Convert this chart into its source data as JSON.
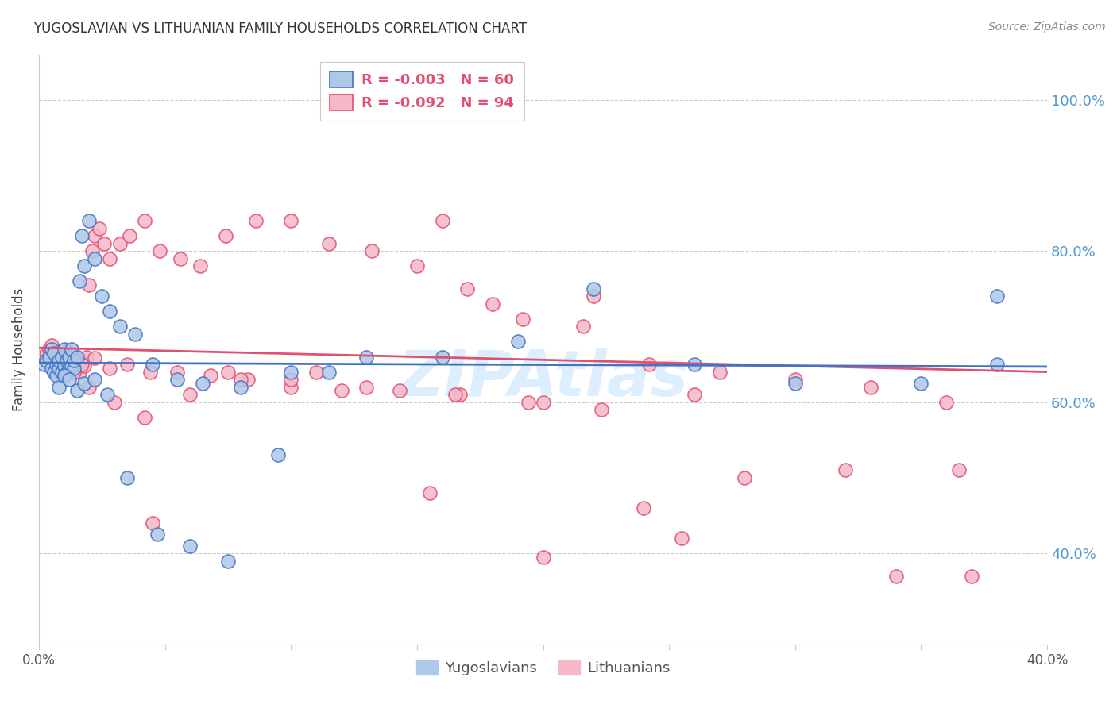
{
  "title": "YUGOSLAVIAN VS LITHUANIAN FAMILY HOUSEHOLDS CORRELATION CHART",
  "source": "Source: ZipAtlas.com",
  "ylabel": "Family Households",
  "legend_blue_r": "-0.003",
  "legend_blue_n": "60",
  "legend_pink_r": "-0.092",
  "legend_pink_n": "94",
  "xlim": [
    0.0,
    0.4
  ],
  "ylim": [
    0.28,
    1.06
  ],
  "yticks": [
    0.4,
    0.6,
    0.8,
    1.0
  ],
  "ytick_labels": [
    "40.0%",
    "60.0%",
    "80.0%",
    "100.0%"
  ],
  "xticks": [
    0.0,
    0.05,
    0.1,
    0.15,
    0.2,
    0.25,
    0.3,
    0.35,
    0.4
  ],
  "xtick_labels": [
    "0.0%",
    "",
    "",
    "",
    "",
    "",
    "",
    "",
    "40.0%"
  ],
  "blue_color": "#adc8e8",
  "pink_color": "#f4b8c8",
  "trendline_blue": "#4472c4",
  "trendline_pink": "#e05070",
  "background_color": "#ffffff",
  "grid_color": "#cccccc",
  "title_color": "#333333",
  "right_tick_color": "#5599cc",
  "watermark_color": "#ddeeff",
  "blue_x": [
    0.002,
    0.003,
    0.004,
    0.005,
    0.005,
    0.006,
    0.006,
    0.007,
    0.007,
    0.008,
    0.008,
    0.009,
    0.009,
    0.01,
    0.01,
    0.011,
    0.011,
    0.012,
    0.012,
    0.013,
    0.013,
    0.014,
    0.014,
    0.015,
    0.016,
    0.017,
    0.018,
    0.02,
    0.022,
    0.025,
    0.028,
    0.032,
    0.038,
    0.045,
    0.055,
    0.065,
    0.08,
    0.1,
    0.13,
    0.16,
    0.19,
    0.22,
    0.26,
    0.3,
    0.35,
    0.38,
    0.008,
    0.01,
    0.012,
    0.015,
    0.018,
    0.022,
    0.027,
    0.035,
    0.047,
    0.06,
    0.075,
    0.095,
    0.115,
    0.38
  ],
  "blue_y": [
    0.65,
    0.655,
    0.66,
    0.645,
    0.67,
    0.64,
    0.665,
    0.65,
    0.635,
    0.645,
    0.655,
    0.66,
    0.64,
    0.648,
    0.67,
    0.638,
    0.655,
    0.645,
    0.66,
    0.648,
    0.67,
    0.645,
    0.655,
    0.66,
    0.76,
    0.82,
    0.78,
    0.84,
    0.79,
    0.74,
    0.72,
    0.7,
    0.69,
    0.65,
    0.63,
    0.625,
    0.62,
    0.64,
    0.66,
    0.66,
    0.68,
    0.75,
    0.65,
    0.625,
    0.625,
    0.74,
    0.62,
    0.635,
    0.63,
    0.615,
    0.625,
    0.63,
    0.61,
    0.5,
    0.425,
    0.41,
    0.39,
    0.53,
    0.64,
    0.65
  ],
  "pink_x": [
    0.002,
    0.003,
    0.004,
    0.005,
    0.005,
    0.006,
    0.006,
    0.007,
    0.007,
    0.008,
    0.008,
    0.009,
    0.009,
    0.01,
    0.01,
    0.011,
    0.011,
    0.012,
    0.013,
    0.014,
    0.015,
    0.016,
    0.017,
    0.018,
    0.019,
    0.02,
    0.021,
    0.022,
    0.024,
    0.026,
    0.028,
    0.032,
    0.036,
    0.042,
    0.048,
    0.056,
    0.064,
    0.074,
    0.086,
    0.1,
    0.115,
    0.132,
    0.15,
    0.17,
    0.192,
    0.216,
    0.242,
    0.27,
    0.3,
    0.33,
    0.36,
    0.008,
    0.012,
    0.017,
    0.022,
    0.028,
    0.035,
    0.044,
    0.055,
    0.068,
    0.083,
    0.1,
    0.12,
    0.143,
    0.167,
    0.194,
    0.223,
    0.01,
    0.014,
    0.02,
    0.03,
    0.042,
    0.06,
    0.08,
    0.1,
    0.13,
    0.165,
    0.2,
    0.24,
    0.28,
    0.32,
    0.365,
    0.18,
    0.22,
    0.26,
    0.16,
    0.37,
    0.34,
    0.2,
    0.255,
    0.155,
    0.11,
    0.075,
    0.045
  ],
  "pink_y": [
    0.66,
    0.665,
    0.67,
    0.655,
    0.675,
    0.645,
    0.665,
    0.65,
    0.665,
    0.648,
    0.66,
    0.655,
    0.668,
    0.645,
    0.66,
    0.65,
    0.658,
    0.645,
    0.655,
    0.645,
    0.66,
    0.64,
    0.655,
    0.648,
    0.66,
    0.755,
    0.8,
    0.82,
    0.83,
    0.81,
    0.79,
    0.81,
    0.82,
    0.84,
    0.8,
    0.79,
    0.78,
    0.82,
    0.84,
    0.84,
    0.81,
    0.8,
    0.78,
    0.75,
    0.71,
    0.7,
    0.65,
    0.64,
    0.63,
    0.62,
    0.6,
    0.665,
    0.66,
    0.65,
    0.658,
    0.645,
    0.65,
    0.64,
    0.64,
    0.635,
    0.63,
    0.62,
    0.615,
    0.615,
    0.61,
    0.6,
    0.59,
    0.65,
    0.64,
    0.62,
    0.6,
    0.58,
    0.61,
    0.63,
    0.63,
    0.62,
    0.61,
    0.6,
    0.46,
    0.5,
    0.51,
    0.51,
    0.73,
    0.74,
    0.61,
    0.84,
    0.37,
    0.37,
    0.395,
    0.42,
    0.48,
    0.64,
    0.64,
    0.44
  ]
}
